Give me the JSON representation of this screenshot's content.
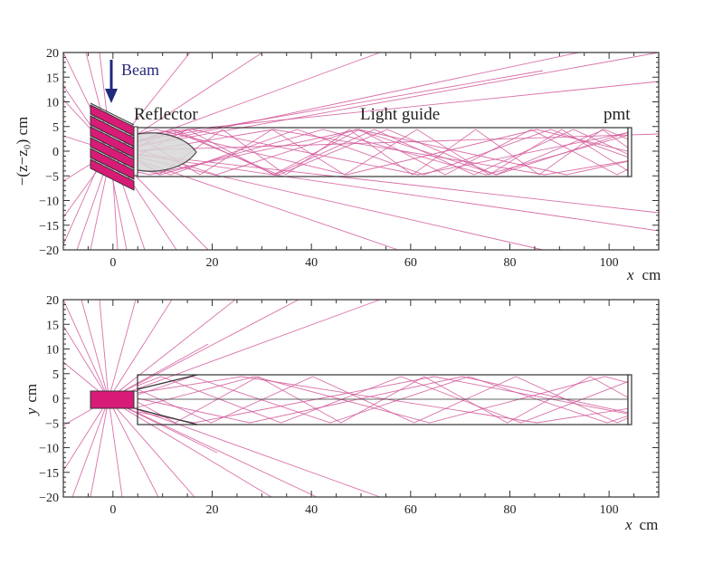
{
  "colors": {
    "ray": "#d2589a",
    "scint_fill": "#d81b77",
    "beam_arrow": "#1f2a7c",
    "reflector_fill": "#d8d8d8",
    "frame": "#333333"
  },
  "panels": [
    {
      "id": "top",
      "ylabel": "−(z−z₀) cm",
      "xlabel_var": "x",
      "xlabel_unit": "cm",
      "xlim": [
        -10,
        110
      ],
      "ylim": [
        -20,
        20
      ],
      "xticks": [
        "0",
        "20",
        "40",
        "60",
        "80",
        "100"
      ],
      "yticks": [
        "20",
        "15",
        "10",
        "5",
        "0",
        "−5",
        "−10",
        "−15",
        "−20"
      ],
      "annotations": {
        "beam": "Beam",
        "reflector": "Reflector",
        "light_guide": "Light guide",
        "pmt": "pmt"
      }
    },
    {
      "id": "bottom",
      "ylabel_var": "y",
      "ylabel_unit": "cm",
      "xlabel_var": "x",
      "xlabel_unit": "cm",
      "xlim": [
        -10,
        110
      ],
      "ylim": [
        -20,
        20
      ],
      "xticks": [
        "0",
        "20",
        "40",
        "60",
        "80",
        "100"
      ],
      "yticks": [
        "20",
        "15",
        "10",
        "5",
        "0",
        "−5",
        "−10",
        "−15",
        "−20"
      ]
    }
  ]
}
